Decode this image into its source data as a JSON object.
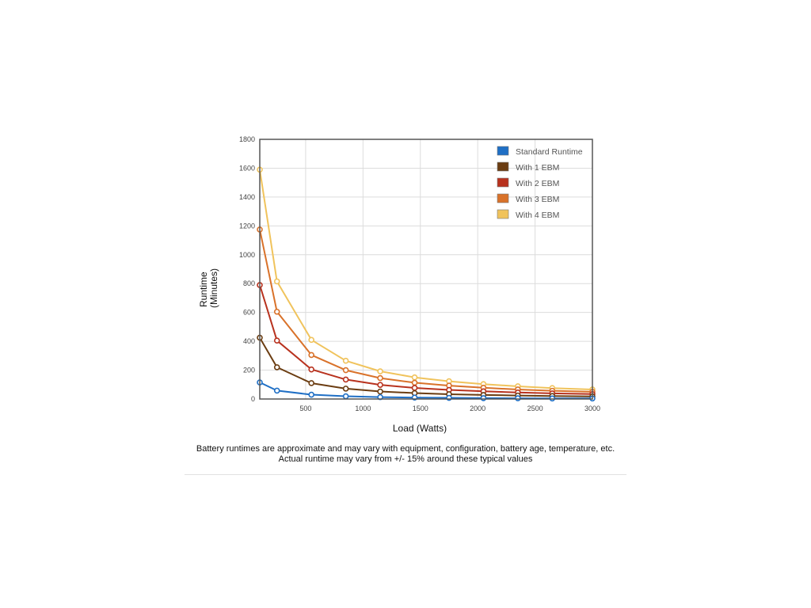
{
  "chart_data": {
    "type": "line",
    "title": "",
    "xlabel": "Load (Watts)",
    "ylabel": [
      "Runtime",
      "(Minutes)"
    ],
    "xlim": [
      100,
      3000
    ],
    "ylim": [
      0,
      1800
    ],
    "x_ticks": [
      500,
      1000,
      1500,
      2000,
      2500,
      3000
    ],
    "y_ticks": [
      0,
      200,
      400,
      600,
      800,
      1000,
      1200,
      1400,
      1600,
      1800
    ],
    "grid": true,
    "legend": "top-right",
    "x": [
      100,
      250,
      550,
      850,
      1150,
      1450,
      1750,
      2050,
      2350,
      2650,
      3000
    ],
    "series": [
      {
        "name": "Standard Runtime",
        "color": "#1f6fc5",
        "values": [
          115,
          58,
          30,
          19,
          13,
          10,
          8,
          6,
          5,
          4,
          4
        ]
      },
      {
        "name": "With 1 EBM",
        "color": "#6b3d12",
        "values": [
          425,
          220,
          110,
          72,
          52,
          41,
          33,
          28,
          24,
          21,
          18
        ]
      },
      {
        "name": "With 2 EBM",
        "color": "#b8321e",
        "values": [
          790,
          405,
          205,
          135,
          98,
          77,
          63,
          53,
          45,
          39,
          34
        ]
      },
      {
        "name": "With 3 EBM",
        "color": "#d9722a",
        "values": [
          1175,
          605,
          305,
          200,
          145,
          113,
          93,
          78,
          66,
          57,
          50
        ]
      },
      {
        "name": "With 4 EBM",
        "color": "#f0c35c",
        "values": [
          1590,
          815,
          410,
          265,
          192,
          150,
          123,
          103,
          88,
          76,
          66
        ]
      }
    ]
  },
  "caption": {
    "line1": "Battery runtimes are approximate and may vary with equipment, configuration, battery age, temperature, etc.",
    "line2": "Actual runtime may vary from +/- 15% around these typical values"
  }
}
